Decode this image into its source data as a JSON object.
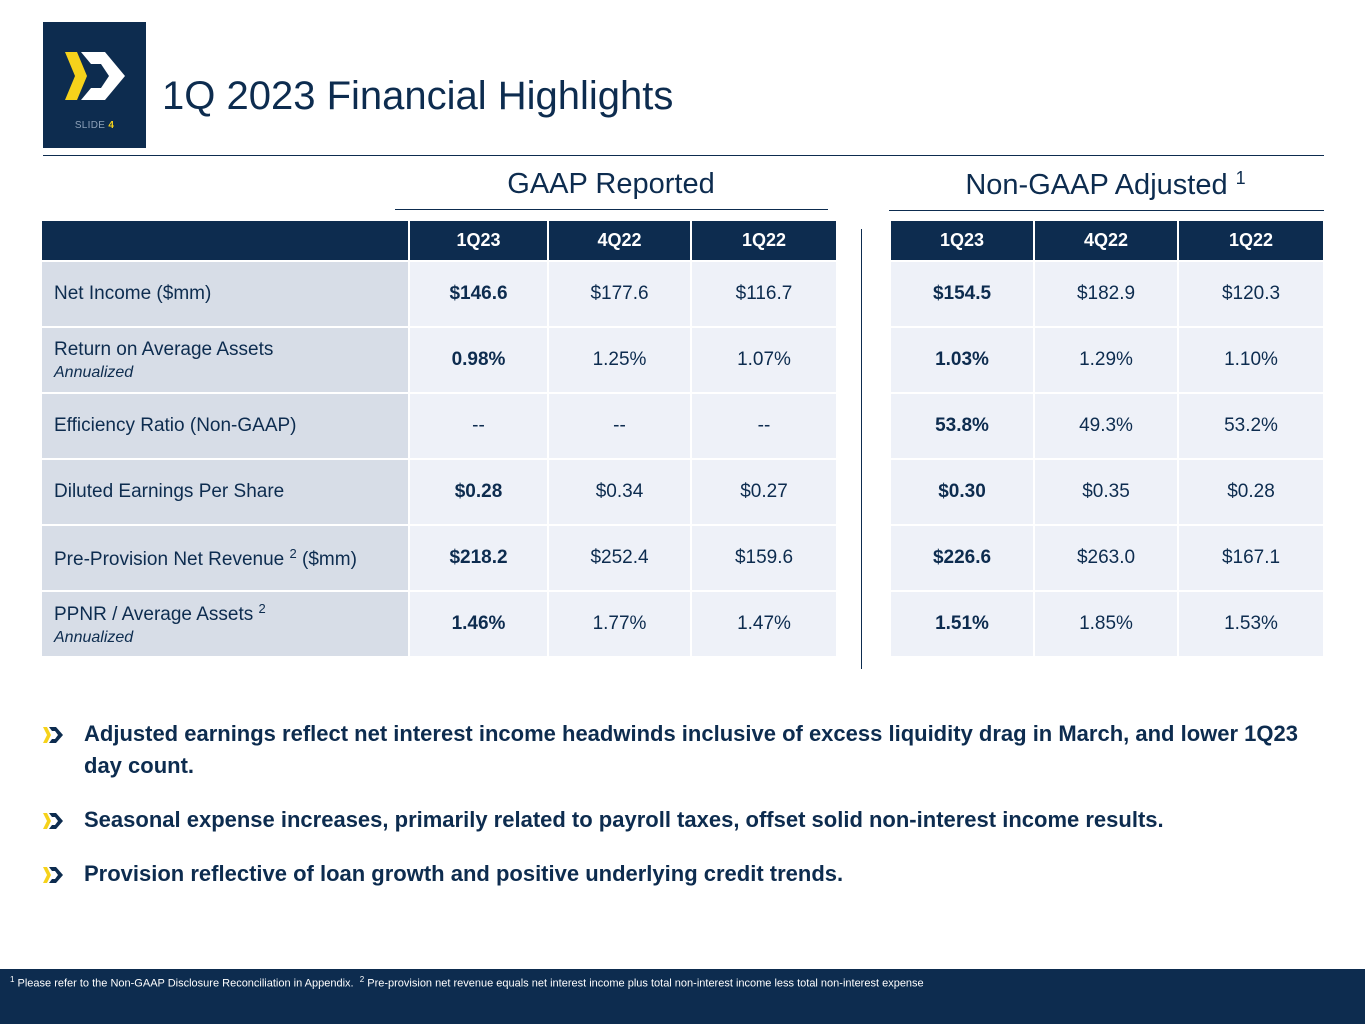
{
  "header": {
    "slide_label_prefix": "SLIDE",
    "slide_number": "4",
    "title": "1Q 2023 Financial Highlights"
  },
  "groups": {
    "gaap": {
      "title": "GAAP Reported"
    },
    "non_gaap": {
      "title": "Non-GAAP Adjusted",
      "footnote_ref": "1"
    }
  },
  "table": {
    "columns": [
      "1Q23",
      "4Q22",
      "1Q22"
    ],
    "rows": [
      {
        "label": "Net Income ($mm)",
        "sub": "",
        "sup": "",
        "label_suffix": "",
        "gaap": [
          "$146.6",
          "$177.6",
          "$116.7"
        ],
        "non_gaap": [
          "$154.5",
          "$182.9",
          "$120.3"
        ]
      },
      {
        "label": "Return on Average Assets",
        "sub": "Annualized",
        "sup": "",
        "label_suffix": "",
        "gaap": [
          "0.98%",
          "1.25%",
          "1.07%"
        ],
        "non_gaap": [
          "1.03%",
          "1.29%",
          "1.10%"
        ]
      },
      {
        "label": "Efficiency Ratio (Non-GAAP)",
        "sub": "",
        "sup": "",
        "label_suffix": "",
        "gaap": [
          "--",
          "--",
          "--"
        ],
        "non_gaap": [
          "53.8%",
          "49.3%",
          "53.2%"
        ]
      },
      {
        "label": "Diluted Earnings Per Share",
        "sub": "",
        "sup": "",
        "label_suffix": "",
        "gaap": [
          "$0.28",
          "$0.34",
          "$0.27"
        ],
        "non_gaap": [
          "$0.30",
          "$0.35",
          "$0.28"
        ]
      },
      {
        "label": "Pre-Provision Net Revenue",
        "sub": "",
        "sup": "2",
        "label_suffix": "($mm)",
        "gaap": [
          "$218.2",
          "$252.4",
          "$159.6"
        ],
        "non_gaap": [
          "$226.6",
          "$263.0",
          "$167.1"
        ]
      },
      {
        "label": "PPNR / Average Assets",
        "sub": "Annualized",
        "sup": "2",
        "label_suffix": "",
        "gaap": [
          "1.46%",
          "1.77%",
          "1.47%"
        ],
        "non_gaap": [
          "1.51%",
          "1.85%",
          "1.53%"
        ]
      }
    ]
  },
  "bullets": [
    "Adjusted earnings reflect net interest income headwinds inclusive of excess liquidity drag in March, and lower 1Q23 day count.",
    "Seasonal expense increases, primarily related to payroll taxes, offset solid non-interest income results.",
    "Provision reflective of loan growth and positive underlying credit trends."
  ],
  "footnotes": {
    "note1_ref": "1",
    "note1_text": "Please refer to the Non-GAAP Disclosure Reconciliation in Appendix.",
    "note2_ref": "2",
    "note2_text": "Pre-provision net revenue equals net interest income plus total non-interest income less total non-interest expense"
  },
  "colors": {
    "navy": "#0d2c4f",
    "accent_yellow": "#f6d21b",
    "label_cell": "#d7dde7",
    "value_cell": "#eef1f8"
  }
}
